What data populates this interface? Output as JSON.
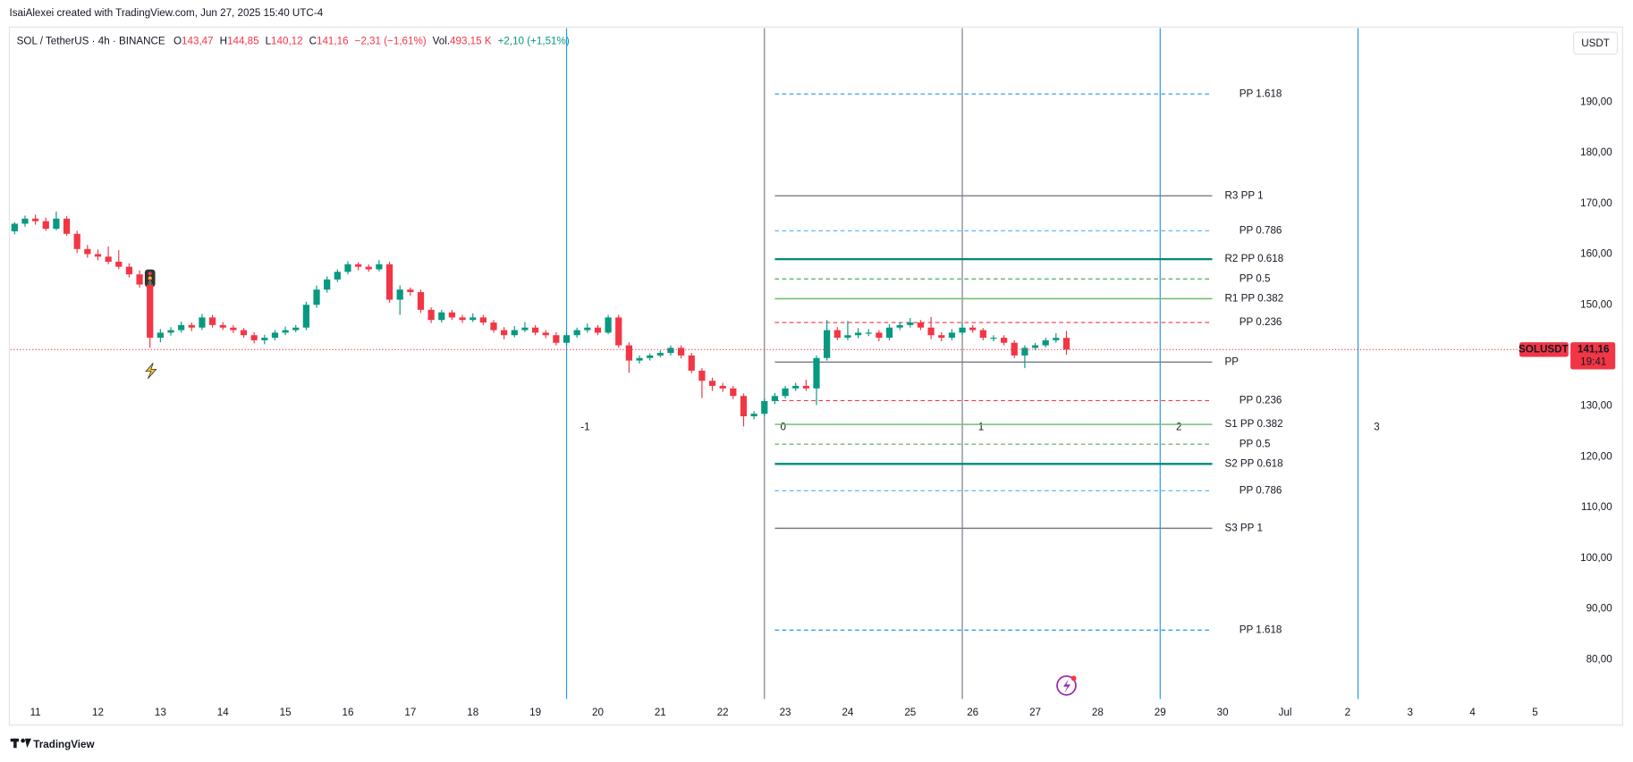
{
  "header": "IsaiAlexei created with TradingView.com, Jun 27, 2025 15:40 UTC-4",
  "footer": "TradingView",
  "chart_data": {
    "type": "candlestick",
    "legend": {
      "symbol": "SOL / TetherUS · 4h · BINANCE",
      "items": [
        {
          "key": "O",
          "value": "143,47"
        },
        {
          "key": "H",
          "value": "144,85"
        },
        {
          "key": "L",
          "value": "140,12"
        },
        {
          "key": "C",
          "value": "141,16"
        }
      ],
      "change": "−2,31 (−1,61%)",
      "volume_key": "Vol.",
      "volume": "493,15 K",
      "extra": "+2,10 (+1,51%)"
    },
    "currency": "USDT",
    "price_tag": {
      "symbol": "SOLUSDT",
      "price": "141,16",
      "countdown": "19:41"
    },
    "up_color": "#089981",
    "down_color": "#f23645",
    "xlim": [
      254.4,
      852.4
    ],
    "ylim": [
      72.2,
      204.6
    ],
    "xticks": [
      {
        "value": 264,
        "label": "11"
      },
      {
        "value": 288,
        "label": "12"
      },
      {
        "value": 312,
        "label": "13"
      },
      {
        "value": 336,
        "label": "14"
      },
      {
        "value": 360,
        "label": "15"
      },
      {
        "value": 384,
        "label": "16"
      },
      {
        "value": 408,
        "label": "17"
      },
      {
        "value": 432,
        "label": "18"
      },
      {
        "value": 456,
        "label": "19"
      },
      {
        "value": 480,
        "label": "20"
      },
      {
        "value": 504,
        "label": "21"
      },
      {
        "value": 528,
        "label": "22"
      },
      {
        "value": 552,
        "label": "23"
      },
      {
        "value": 576,
        "label": "24"
      },
      {
        "value": 600,
        "label": "25"
      },
      {
        "value": 624,
        "label": "26"
      },
      {
        "value": 648,
        "label": "27"
      },
      {
        "value": 672,
        "label": "28"
      },
      {
        "value": 696,
        "label": "29"
      },
      {
        "value": 720,
        "label": "30"
      },
      {
        "value": 744,
        "label": "Jul"
      },
      {
        "value": 768,
        "label": "2"
      },
      {
        "value": 792,
        "label": "3"
      },
      {
        "value": 816,
        "label": "4"
      },
      {
        "value": 840,
        "label": "5"
      }
    ],
    "yticks": [
      {
        "value": 80,
        "label": "80,00"
      },
      {
        "value": 90,
        "label": "90,00"
      },
      {
        "value": 100,
        "label": "100,00"
      },
      {
        "value": 110,
        "label": "110,00"
      },
      {
        "value": 120,
        "label": "120,00"
      },
      {
        "value": 130,
        "label": "130,00"
      },
      {
        "value": 140,
        "label": "140,00"
      },
      {
        "value": 150,
        "label": "150,00"
      },
      {
        "value": 160,
        "label": "160,00"
      },
      {
        "value": 170,
        "label": "170,00"
      },
      {
        "value": 180,
        "label": "180,00"
      },
      {
        "value": 190,
        "label": "190,00"
      }
    ],
    "candles": [
      [
        256,
        164.5,
        166.3,
        163.9,
        166
      ],
      [
        260,
        166,
        167.6,
        165.4,
        167
      ],
      [
        264,
        167,
        167.8,
        165.8,
        166.5
      ],
      [
        268,
        166.5,
        167.2,
        164.6,
        165
      ],
      [
        272,
        165,
        168.4,
        164.7,
        167
      ],
      [
        276,
        167,
        167.5,
        163.6,
        164
      ],
      [
        280,
        164,
        164.6,
        160.2,
        161
      ],
      [
        284,
        161,
        161.8,
        159.3,
        160
      ],
      [
        288,
        160,
        160.9,
        158.8,
        159.5
      ],
      [
        292,
        159.5,
        161.5,
        158,
        158.5
      ],
      [
        296,
        158.5,
        160.8,
        157,
        157.5
      ],
      [
        300,
        157.5,
        158.2,
        155.4,
        156
      ],
      [
        304,
        156,
        156.8,
        153.4,
        154
      ],
      [
        308,
        154,
        155.2,
        141.5,
        143.5
      ],
      [
        312,
        143.5,
        145.2,
        142.6,
        144.5
      ],
      [
        316,
        144.5,
        145.6,
        143.9,
        145
      ],
      [
        320,
        145,
        146.7,
        144.5,
        146
      ],
      [
        324,
        146,
        146.5,
        144.8,
        145.5
      ],
      [
        328,
        145.5,
        148.2,
        145,
        147.5
      ],
      [
        332,
        147.5,
        148,
        145.5,
        146
      ],
      [
        336,
        146,
        146.6,
        145,
        145.5
      ],
      [
        340,
        145.5,
        146,
        144.4,
        145
      ],
      [
        344,
        145,
        145.4,
        143.5,
        144
      ],
      [
        348,
        144,
        144.6,
        142.4,
        143
      ],
      [
        352,
        143,
        144.1,
        142.2,
        143.5
      ],
      [
        356,
        143.5,
        145,
        143,
        144.5
      ],
      [
        360,
        144.5,
        145.7,
        144,
        145
      ],
      [
        364,
        145,
        146,
        144.6,
        145.5
      ],
      [
        368,
        145.5,
        150.6,
        145,
        150
      ],
      [
        372,
        150,
        153.8,
        149.4,
        153
      ],
      [
        376,
        153,
        155.6,
        152.4,
        155
      ],
      [
        380,
        155,
        157,
        154.5,
        156.5
      ],
      [
        384,
        156.5,
        158.6,
        156,
        158
      ],
      [
        388,
        158,
        158.4,
        156.8,
        157.5
      ],
      [
        392,
        157.5,
        158,
        156.5,
        157
      ],
      [
        396,
        157,
        158.8,
        156.6,
        158
      ],
      [
        400,
        158,
        158.5,
        150.4,
        151
      ],
      [
        404,
        151,
        153.8,
        148,
        153
      ],
      [
        408,
        153,
        153.4,
        151.8,
        152.5
      ],
      [
        412,
        152.5,
        153,
        148.4,
        149
      ],
      [
        416,
        149,
        149.5,
        146.4,
        147
      ],
      [
        420,
        147,
        149,
        146.5,
        148.5
      ],
      [
        424,
        148.5,
        149,
        147,
        147.5
      ],
      [
        428,
        147.5,
        148,
        146.4,
        147
      ],
      [
        432,
        147,
        148.3,
        146.6,
        147.5
      ],
      [
        436,
        147.5,
        148,
        146,
        146.5
      ],
      [
        440,
        146.5,
        147,
        144.5,
        145
      ],
      [
        444,
        145,
        145.6,
        143.2,
        144
      ],
      [
        448,
        144,
        145.8,
        143.6,
        145
      ],
      [
        452,
        145,
        146.6,
        144.6,
        145.5
      ],
      [
        456,
        145.5,
        146,
        144,
        144.5
      ],
      [
        460,
        144.5,
        145,
        143.4,
        144
      ],
      [
        464,
        144,
        144.6,
        142,
        142.5
      ],
      [
        468,
        142.5,
        144.6,
        142,
        144
      ],
      [
        472,
        144,
        145.5,
        143.5,
        145
      ],
      [
        476,
        145,
        146.3,
        144.5,
        145.5
      ],
      [
        480,
        145.5,
        146,
        144,
        144.5
      ],
      [
        484,
        144.5,
        148,
        144.2,
        147.5
      ],
      [
        488,
        147.5,
        148,
        141.5,
        142
      ],
      [
        492,
        142,
        142.6,
        136.6,
        139
      ],
      [
        496,
        139,
        140,
        138.4,
        139.5
      ],
      [
        500,
        139.5,
        140.4,
        139,
        140
      ],
      [
        504,
        140,
        141,
        139.6,
        140.5
      ],
      [
        508,
        140.5,
        142,
        140,
        141.5
      ],
      [
        512,
        141.5,
        142,
        139.4,
        140
      ],
      [
        516,
        140,
        140.5,
        136.5,
        137
      ],
      [
        520,
        137,
        137.5,
        131.6,
        135
      ],
      [
        524,
        135,
        135.6,
        133,
        134
      ],
      [
        528,
        134,
        134.6,
        132.8,
        133.5
      ],
      [
        532,
        133.5,
        134,
        131.4,
        132
      ],
      [
        536,
        132,
        132.5,
        126,
        128
      ],
      [
        540,
        128,
        129,
        127.4,
        128.5
      ],
      [
        544,
        128.5,
        131.5,
        128,
        131
      ],
      [
        548,
        131,
        132.6,
        130.4,
        132
      ],
      [
        552,
        132,
        134,
        131.5,
        133.5
      ],
      [
        556,
        133.5,
        134.6,
        133,
        134
      ],
      [
        560,
        134,
        135.2,
        133,
        133.5
      ],
      [
        564,
        133.5,
        140,
        130.2,
        139.5
      ],
      [
        568,
        139.5,
        147,
        139,
        145
      ],
      [
        572,
        145,
        145.6,
        143,
        143.5
      ],
      [
        576,
        143.5,
        146.8,
        143,
        144
      ],
      [
        580,
        144,
        145.4,
        143.4,
        144.5
      ],
      [
        584,
        144.5,
        145.2,
        143.8,
        144.5
      ],
      [
        588,
        144.5,
        145,
        142.8,
        143.5
      ],
      [
        592,
        143.5,
        146.2,
        143,
        145.5
      ],
      [
        596,
        145.5,
        146.6,
        145,
        146
      ],
      [
        600,
        146,
        147.4,
        145.5,
        146.5
      ],
      [
        604,
        146.5,
        147,
        145,
        145.5
      ],
      [
        608,
        145.5,
        147.6,
        143.2,
        144
      ],
      [
        612,
        144,
        144.6,
        142.8,
        143.5
      ],
      [
        616,
        143.5,
        145.2,
        143,
        144.5
      ],
      [
        620,
        144.5,
        146.6,
        144,
        145.5
      ],
      [
        624,
        145.5,
        146,
        144.5,
        145
      ],
      [
        628,
        145,
        145.4,
        143,
        143.5
      ],
      [
        632,
        143.5,
        144,
        142.8,
        143.5
      ],
      [
        636,
        143.5,
        144,
        142,
        142.5
      ],
      [
        640,
        142.5,
        143,
        139.5,
        140
      ],
      [
        644,
        140,
        142,
        137.5,
        141.5
      ],
      [
        648,
        141.5,
        142.5,
        141,
        142
      ],
      [
        652,
        142,
        143.5,
        141.6,
        143
      ],
      [
        656,
        143,
        144.4,
        142.5,
        143.47
      ],
      [
        660,
        143.47,
        144.85,
        140.12,
        141.16
      ]
    ],
    "pivot_x": [
      548,
      716
    ],
    "pivots": [
      {
        "label": "PP 1.618",
        "value": 191.6,
        "color": "#2196f3",
        "dashed": true
      },
      {
        "label": "R3 PP 1",
        "value": 171.5,
        "color": "#787b86",
        "dashed": false
      },
      {
        "label": "PP 0.786",
        "value": 164.6,
        "color": "#64b5f6",
        "dashed": true
      },
      {
        "label": "R2 PP 0.618",
        "value": 159,
        "color": "#00897b",
        "dashed": false
      },
      {
        "label": "PP 0.5",
        "value": 155.1,
        "color": "#4caf50",
        "dashed": true
      },
      {
        "label": "R1 PP 0.382",
        "value": 151.2,
        "color": "#66bb6a",
        "dashed": false
      },
      {
        "label": "PP 0.236",
        "value": 146.5,
        "color": "#f23645",
        "dashed": true
      },
      {
        "label": "PP",
        "value": 138.7,
        "color": "#787b86",
        "dashed": false
      },
      {
        "label": "PP 0.236",
        "value": 131.1,
        "color": "#f23645",
        "dashed": true
      },
      {
        "label": "S1 PP 0.382",
        "value": 126.4,
        "color": "#66bb6a",
        "dashed": false
      },
      {
        "label": "PP 0.5",
        "value": 122.5,
        "color": "#4caf50",
        "dashed": true
      },
      {
        "label": "S2 PP 0.618",
        "value": 118.6,
        "color": "#00897b",
        "dashed": false
      },
      {
        "label": "PP 0.786",
        "value": 113.3,
        "color": "#64b5f6",
        "dashed": true
      },
      {
        "label": "S3 PP 1",
        "value": 105.9,
        "color": "#787b86",
        "dashed": false
      },
      {
        "label": "PP 1.618",
        "value": 85.8,
        "color": "#2196f3",
        "dashed": true
      }
    ],
    "cycles": [
      {
        "x": 468,
        "label": "-1",
        "color": "#2196f3"
      },
      {
        "x": 544,
        "label": "0",
        "color": "#787b86"
      },
      {
        "x": 620,
        "label": "1",
        "color": "#787b86"
      },
      {
        "x": 696,
        "label": "2",
        "color": "#2196f3"
      },
      {
        "x": 772,
        "label": "3",
        "color": "#2196f3"
      }
    ]
  }
}
